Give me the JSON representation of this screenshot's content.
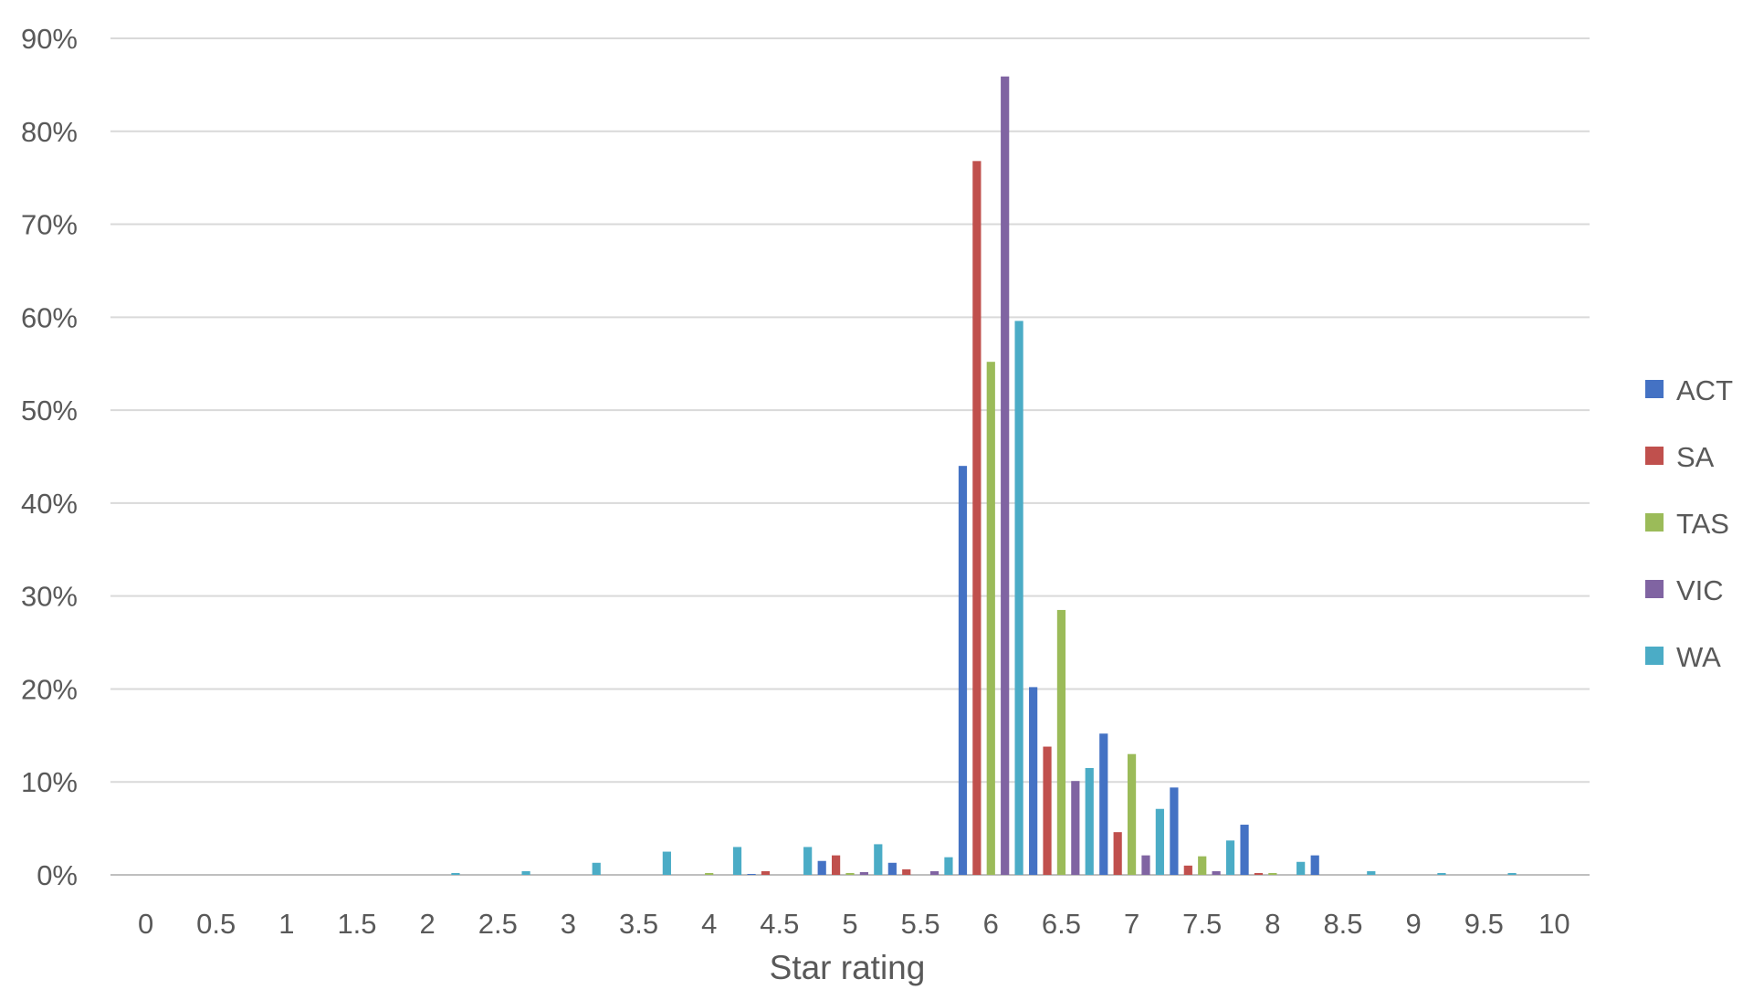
{
  "chart_data": {
    "type": "bar",
    "title": "",
    "xlabel": "Star rating",
    "ylabel": "",
    "ylim": [
      0,
      0.9
    ],
    "y_ticks": [
      "0%",
      "10%",
      "20%",
      "30%",
      "40%",
      "50%",
      "60%",
      "70%",
      "80%",
      "90%"
    ],
    "grid": "horizontal",
    "legend_position": "right",
    "categories": [
      "0",
      "0.5",
      "1",
      "1.5",
      "2",
      "2.5",
      "3",
      "3.5",
      "4",
      "4.5",
      "5",
      "5.5",
      "6",
      "6.5",
      "7",
      "7.5",
      "8",
      "8.5",
      "9",
      "9.5",
      "10"
    ],
    "series": [
      {
        "name": "ACT",
        "color": "#4472C4",
        "values": [
          0,
          0,
          0,
          0,
          0,
          0,
          0,
          0,
          0,
          0.001,
          0.015,
          0.013,
          0.44,
          0.202,
          0.152,
          0.094,
          0.054,
          0.021,
          0,
          0,
          0
        ]
      },
      {
        "name": "SA",
        "color": "#C0504D",
        "values": [
          0,
          0,
          0,
          0,
          0,
          0,
          0,
          0,
          0,
          0.004,
          0.021,
          0.006,
          0.768,
          0.138,
          0.046,
          0.01,
          0.002,
          0,
          0,
          0,
          0
        ]
      },
      {
        "name": "TAS",
        "color": "#9BBB59",
        "values": [
          0,
          0,
          0,
          0,
          0,
          0,
          0,
          0,
          0.002,
          0,
          0.002,
          0,
          0.552,
          0.285,
          0.13,
          0.02,
          0.002,
          0,
          0,
          0,
          0
        ]
      },
      {
        "name": "VIC",
        "color": "#8064A2",
        "values": [
          0,
          0,
          0,
          0,
          0,
          0,
          0,
          0,
          0,
          0,
          0.003,
          0.004,
          0.859,
          0.101,
          0.021,
          0.004,
          0,
          0,
          0,
          0,
          0
        ]
      },
      {
        "name": "WA",
        "color": "#4BACC6",
        "values": [
          0,
          0,
          0,
          0,
          0.002,
          0.004,
          0.013,
          0.025,
          0.03,
          0.03,
          0.033,
          0.019,
          0.596,
          0.115,
          0.071,
          0.037,
          0.014,
          0.004,
          0.002,
          0.002,
          0
        ]
      }
    ]
  }
}
